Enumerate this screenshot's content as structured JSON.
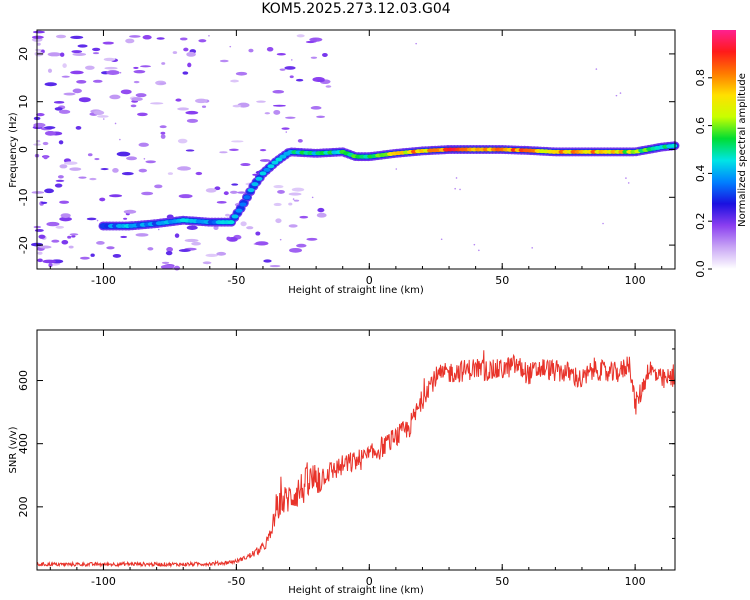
{
  "title": "KOM5.2025.273.12.03.G04",
  "colors": {
    "snr_line": "#e8332a",
    "axis": "#000000",
    "background": "#ffffff"
  },
  "chart_data": [
    {
      "type": "heatmap",
      "name": "spectrogram",
      "xlabel": "Height of straight line (km)",
      "ylabel": "Frequency (Hz)",
      "xlim": [
        -125,
        115
      ],
      "ylim": [
        -25,
        25
      ],
      "xticks": [
        -100,
        -50,
        0,
        50,
        100
      ],
      "yticks": [
        -20,
        -10,
        0,
        10,
        20
      ],
      "colorbar": {
        "label": "Normalized spectral amplitude",
        "range": [
          0,
          1
        ],
        "ticks": [
          "0.0",
          "0.2",
          "0.4",
          "0.6",
          "0.8"
        ],
        "tick_values": [
          0.0,
          0.2,
          0.4,
          0.6,
          0.8
        ],
        "colors": [
          "#ffffff",
          "#c9a6f5",
          "#8b3ff0",
          "#1a10e0",
          "#0080ff",
          "#00e5e5",
          "#00dd33",
          "#c8ff00",
          "#ffe000",
          "#ff7a00",
          "#ff1a1a",
          "#ff2090"
        ]
      },
      "ridge": [
        {
          "x": -100,
          "freq": -16.0,
          "amp": 0.35
        },
        {
          "x": -90,
          "freq": -16.0,
          "amp": 0.45
        },
        {
          "x": -80,
          "freq": -15.5,
          "amp": 0.4
        },
        {
          "x": -70,
          "freq": -14.8,
          "amp": 0.45
        },
        {
          "x": -60,
          "freq": -15.2,
          "amp": 0.42
        },
        {
          "x": -52,
          "freq": -15.2,
          "amp": 0.48
        },
        {
          "x": -48,
          "freq": -12.0,
          "amp": 0.4
        },
        {
          "x": -44,
          "freq": -8.0,
          "amp": 0.42
        },
        {
          "x": -40,
          "freq": -5.0,
          "amp": 0.45
        },
        {
          "x": -35,
          "freq": -2.5,
          "amp": 0.45
        },
        {
          "x": -30,
          "freq": -0.5,
          "amp": 0.5
        },
        {
          "x": -20,
          "freq": -0.8,
          "amp": 0.55
        },
        {
          "x": -10,
          "freq": -0.5,
          "amp": 0.55
        },
        {
          "x": -5,
          "freq": -1.5,
          "amp": 0.6
        },
        {
          "x": 0,
          "freq": -1.5,
          "amp": 0.65
        },
        {
          "x": 10,
          "freq": -0.8,
          "amp": 0.75
        },
        {
          "x": 20,
          "freq": -0.3,
          "amp": 0.85
        },
        {
          "x": 30,
          "freq": 0.0,
          "amp": 0.9
        },
        {
          "x": 40,
          "freq": 0.0,
          "amp": 0.85
        },
        {
          "x": 50,
          "freq": 0.0,
          "amp": 0.9
        },
        {
          "x": 60,
          "freq": -0.2,
          "amp": 0.85
        },
        {
          "x": 70,
          "freq": -0.5,
          "amp": 0.88
        },
        {
          "x": 80,
          "freq": -0.5,
          "amp": 0.85
        },
        {
          "x": 90,
          "freq": -0.5,
          "amp": 0.8
        },
        {
          "x": 100,
          "freq": -0.5,
          "amp": 0.7
        },
        {
          "x": 110,
          "freq": 0.5,
          "amp": 0.55
        },
        {
          "x": 115,
          "freq": 0.8,
          "amp": 0.5
        }
      ]
    },
    {
      "type": "line",
      "name": "snr",
      "xlabel": "Height of straight line (km)",
      "ylabel": "SNR (v/v)",
      "xlim": [
        -125,
        115
      ],
      "ylim": [
        0,
        760
      ],
      "xticks": [
        -100,
        -50,
        0,
        50,
        100
      ],
      "yticks": [
        200,
        400,
        600
      ],
      "series": [
        {
          "name": "SNR",
          "x": [
            -125,
            -110,
            -100,
            -90,
            -80,
            -70,
            -60,
            -55,
            -50,
            -45,
            -40,
            -37,
            -35,
            -30,
            -25,
            -20,
            -15,
            -10,
            -5,
            0,
            5,
            10,
            15,
            20,
            22,
            25,
            30,
            35,
            40,
            45,
            50,
            55,
            60,
            65,
            70,
            75,
            80,
            85,
            90,
            95,
            98,
            100,
            103,
            105,
            110,
            115
          ],
          "values": [
            18,
            18,
            18,
            19,
            18,
            18,
            20,
            22,
            28,
            45,
            70,
            110,
            200,
            230,
            260,
            290,
            310,
            330,
            345,
            360,
            390,
            420,
            450,
            540,
            580,
            610,
            625,
            630,
            640,
            630,
            635,
            650,
            620,
            640,
            630,
            625,
            600,
            640,
            620,
            630,
            660,
            520,
            580,
            640,
            600,
            610
          ]
        }
      ]
    }
  ]
}
